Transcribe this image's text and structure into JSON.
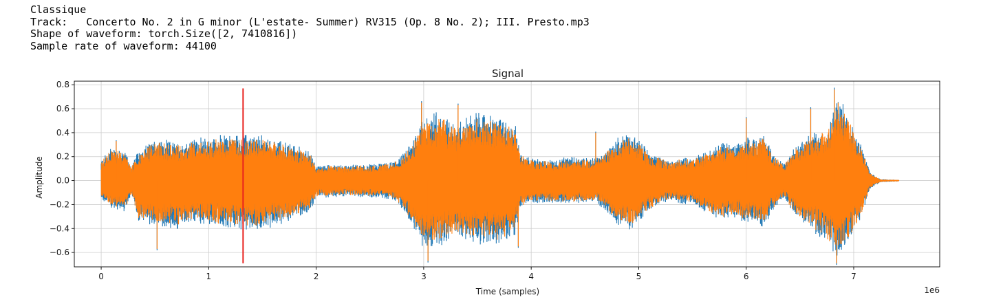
{
  "output": {
    "genre": "Classique",
    "track_label": "Track:",
    "track_name": "Concerto No. 2 in G minor (L'estate- Summer) RV315 (Op. 8 No. 2); III. Presto.mp3",
    "shape_line": "Shape of waveform: torch.Size([2, 7410816])",
    "rate_line": "Sample rate of waveform: 44100"
  },
  "colors": {
    "channel_0": "#1f77b4",
    "channel_1": "#ff7f0e",
    "marker": "#e8231f",
    "grid": "#cccccc",
    "axes": "#000000"
  },
  "chart_data": {
    "type": "line",
    "title": "Signal",
    "xlabel": "Time (samples)",
    "ylabel": "Amplitude",
    "x_offset_label": "1e6",
    "xlim": [
      -0.25,
      7.8
    ],
    "ylim": [
      -0.72,
      0.83
    ],
    "xticks": [
      0,
      1,
      2,
      3,
      4,
      5,
      6,
      7
    ],
    "xtick_labels": [
      "0",
      "1",
      "2",
      "3",
      "4",
      "5",
      "6",
      "7"
    ],
    "yticks": [
      -0.6,
      -0.4,
      -0.2,
      0.0,
      0.2,
      0.4,
      0.6,
      0.8
    ],
    "ytick_labels": [
      "−0.6",
      "−0.4",
      "−0.2",
      "0.0",
      "0.2",
      "0.4",
      "0.6",
      "0.8"
    ],
    "grid": true,
    "legend": "none",
    "vertical_marker": {
      "x": 1.32,
      "y_range": [
        -0.69,
        0.77
      ]
    },
    "series_envelope": {
      "x": [
        0,
        0.1,
        0.22,
        0.28,
        0.35,
        0.5,
        0.7,
        0.9,
        1.1,
        1.3,
        1.5,
        1.7,
        1.85,
        1.95,
        2.0,
        2.1,
        2.3,
        2.5,
        2.7,
        2.8,
        2.9,
        3.0,
        3.15,
        3.3,
        3.5,
        3.7,
        3.85,
        3.9,
        4.0,
        4.2,
        4.4,
        4.6,
        4.7,
        4.8,
        4.9,
        5.0,
        5.1,
        5.2,
        5.3,
        5.4,
        5.5,
        5.6,
        5.7,
        5.8,
        5.9,
        6.0,
        6.1,
        6.15,
        6.25,
        6.35,
        6.45,
        6.6,
        6.75,
        6.85,
        6.95,
        7.05,
        7.1,
        7.15,
        7.25,
        7.42
      ],
      "upper": [
        0.15,
        0.25,
        0.22,
        0.1,
        0.22,
        0.3,
        0.27,
        0.3,
        0.32,
        0.33,
        0.32,
        0.28,
        0.24,
        0.2,
        0.1,
        0.12,
        0.11,
        0.12,
        0.13,
        0.18,
        0.3,
        0.45,
        0.5,
        0.4,
        0.5,
        0.45,
        0.4,
        0.2,
        0.16,
        0.15,
        0.17,
        0.16,
        0.22,
        0.3,
        0.35,
        0.3,
        0.2,
        0.17,
        0.14,
        0.17,
        0.16,
        0.2,
        0.25,
        0.28,
        0.25,
        0.3,
        0.3,
        0.35,
        0.2,
        0.12,
        0.25,
        0.33,
        0.38,
        0.6,
        0.48,
        0.3,
        0.2,
        0.06,
        0.01,
        0.005
      ],
      "lower": [
        -0.13,
        -0.2,
        -0.22,
        -0.1,
        -0.3,
        -0.32,
        -0.35,
        -0.3,
        -0.33,
        -0.35,
        -0.35,
        -0.3,
        -0.25,
        -0.22,
        -0.12,
        -0.12,
        -0.11,
        -0.12,
        -0.13,
        -0.2,
        -0.35,
        -0.5,
        -0.48,
        -0.4,
        -0.45,
        -0.45,
        -0.4,
        -0.2,
        -0.16,
        -0.16,
        -0.17,
        -0.16,
        -0.22,
        -0.32,
        -0.35,
        -0.3,
        -0.22,
        -0.17,
        -0.14,
        -0.17,
        -0.16,
        -0.22,
        -0.26,
        -0.28,
        -0.27,
        -0.3,
        -0.3,
        -0.35,
        -0.22,
        -0.12,
        -0.26,
        -0.35,
        -0.45,
        -0.55,
        -0.45,
        -0.3,
        -0.2,
        -0.06,
        -0.01,
        -0.005
      ]
    },
    "series": [
      {
        "values_note": "channel 0 (blue), mostly hidden behind channel 1"
      },
      {
        "values_note": "channel 1 (orange)"
      }
    ],
    "peaks": [
      {
        "x": 0.14,
        "y": 0.33
      },
      {
        "x": 0.52,
        "y": -0.57
      },
      {
        "x": 1.22,
        "y": 0.33
      },
      {
        "x": 2.98,
        "y": 0.65
      },
      {
        "x": 3.04,
        "y": -0.67
      },
      {
        "x": 3.32,
        "y": 0.63
      },
      {
        "x": 3.88,
        "y": -0.55
      },
      {
        "x": 4.6,
        "y": 0.4
      },
      {
        "x": 6.0,
        "y": 0.52
      },
      {
        "x": 6.6,
        "y": 0.6
      },
      {
        "x": 6.82,
        "y": 0.76
      },
      {
        "x": 6.84,
        "y": -0.69
      }
    ]
  }
}
